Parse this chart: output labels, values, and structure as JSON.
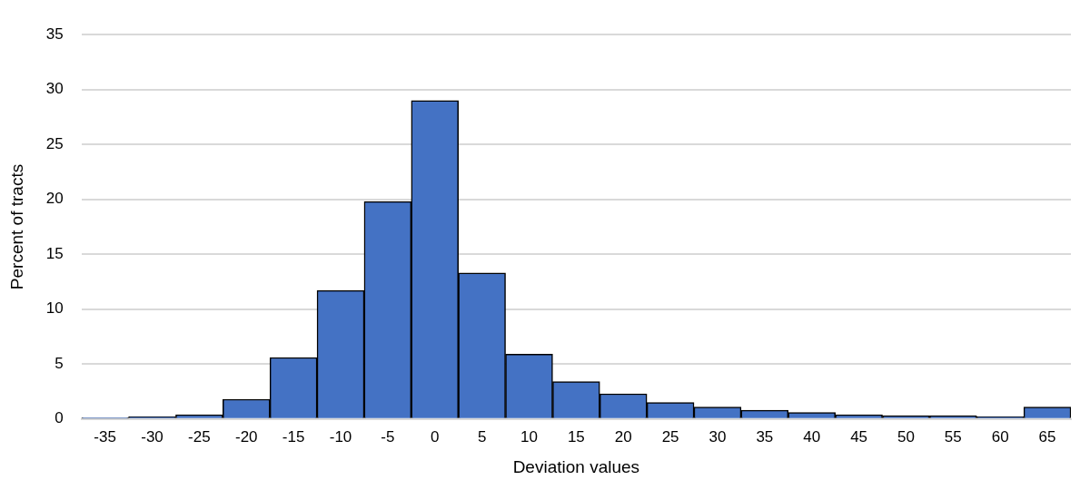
{
  "chart_data": {
    "type": "bar",
    "xlabel": "Deviation values",
    "ylabel": "Percent of tracts",
    "categories": [
      "-35",
      "-30",
      "-25",
      "-20",
      "-15",
      "-10",
      "-5",
      "0",
      "5",
      "10",
      "15",
      "20",
      "25",
      "30",
      "35",
      "40",
      "45",
      "50",
      "55",
      "60",
      "65"
    ],
    "values": [
      0.1,
      0.2,
      0.4,
      1.8,
      5.6,
      11.7,
      19.8,
      29,
      13.3,
      5.9,
      3.4,
      2.3,
      1.5,
      1.1,
      0.8,
      0.6,
      0.4,
      0.3,
      0.3,
      0.2,
      1.1
    ],
    "color": "#4472c4",
    "ylim": [
      0,
      35
    ],
    "yticks": [
      0,
      5,
      10,
      15,
      20,
      25,
      30,
      35
    ],
    "grid": "y",
    "legend": false
  }
}
